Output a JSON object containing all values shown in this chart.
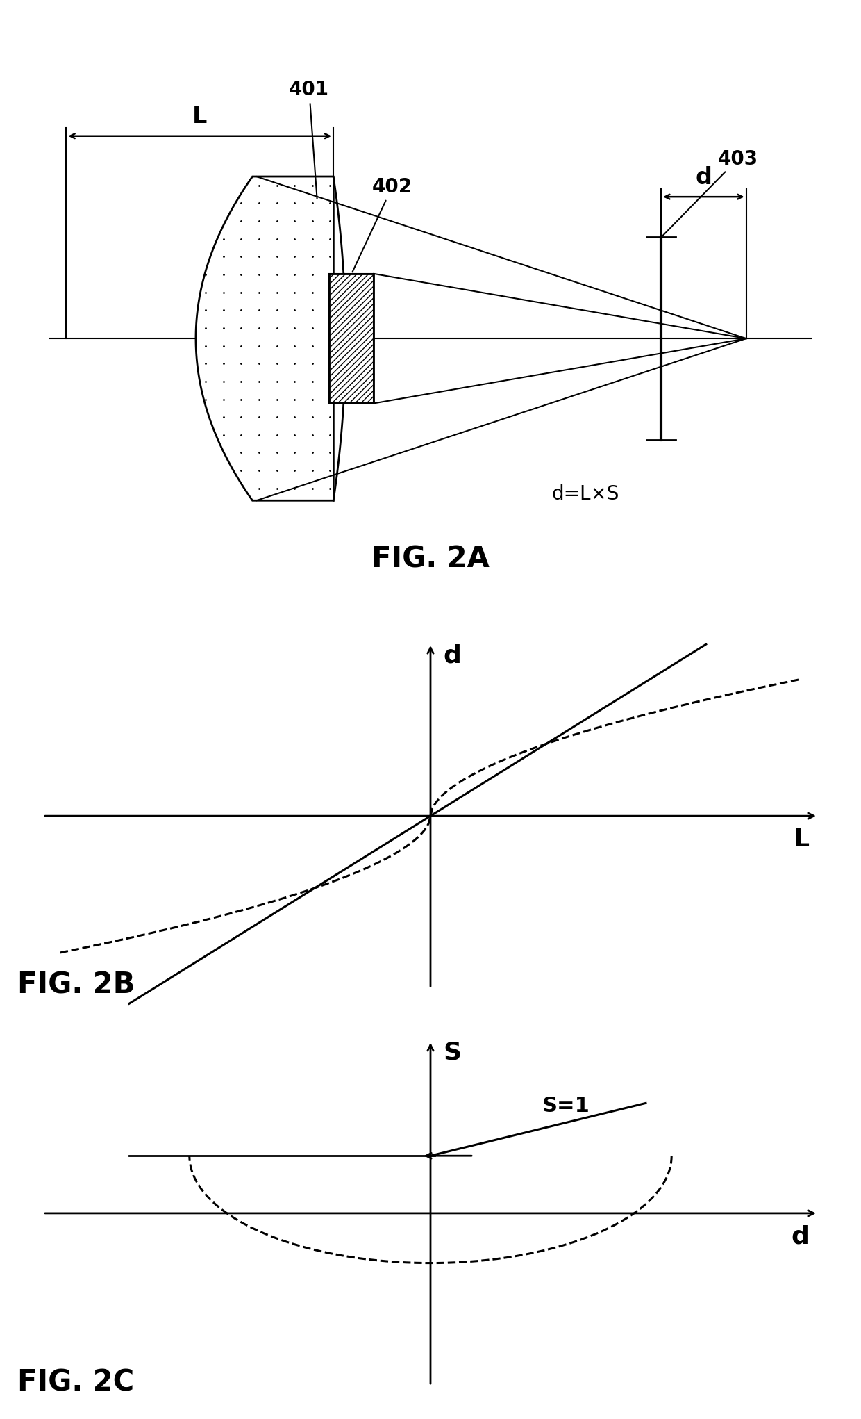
{
  "bg_color": "#ffffff",
  "line_color": "#000000",
  "fig2a": {
    "title": "FIG. 2A",
    "label_401": "401",
    "label_402": "402",
    "label_403": "403",
    "label_L": "L",
    "label_d": "d",
    "label_eq": "d=L×S"
  },
  "fig2b": {
    "title": "FIG. 2B",
    "xlabel": "L",
    "ylabel": "d"
  },
  "fig2c": {
    "title": "FIG. 2C",
    "xlabel": "d",
    "ylabel": "S",
    "label_S1": "S=1"
  }
}
